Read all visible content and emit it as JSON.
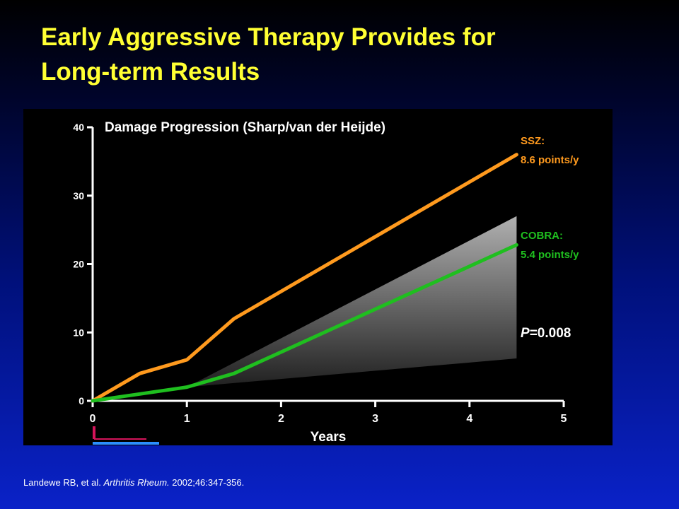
{
  "slide": {
    "title_line1": "Early Aggressive Therapy Provides for",
    "title_line2": "Long-term Results",
    "citation_authors": "Landewe RB, et al. ",
    "citation_journal": "Arthritis Rheum.",
    "citation_rest": " 2002;46:347-356."
  },
  "chart_data": {
    "type": "line",
    "title": "Damage Progression (Sharp/van der Heijde)",
    "xlabel": "Years",
    "ylabel": "",
    "xlim": [
      0,
      5
    ],
    "ylim": [
      0,
      40
    ],
    "x_ticks": [
      "0",
      "1",
      "2",
      "3",
      "4",
      "5"
    ],
    "y_ticks": [
      "0",
      "10",
      "20",
      "30",
      "40"
    ],
    "grid": false,
    "series": [
      {
        "name": "SSZ",
        "color": "#ff9a1e",
        "label_line1": "SSZ:",
        "label_line2": "8.6 points/y",
        "points": [
          [
            0,
            0
          ],
          [
            0.5,
            4
          ],
          [
            1,
            6
          ],
          [
            1.5,
            12
          ],
          [
            4.5,
            36
          ]
        ]
      },
      {
        "name": "COBRA",
        "color": "#1fbf1f",
        "label_line1": "COBRA:",
        "label_line2": "5.4 points/y",
        "points": [
          [
            0,
            0
          ],
          [
            0.5,
            1
          ],
          [
            1,
            2
          ],
          [
            1.5,
            4
          ],
          [
            4.5,
            22.8
          ]
        ]
      }
    ],
    "band": {
      "color_top": "#b0b0b0",
      "color_bottom": "#202020",
      "upper": [
        [
          1,
          2
        ],
        [
          4.5,
          27
        ]
      ],
      "lower": [
        [
          1,
          2
        ],
        [
          4.5,
          6.2
        ]
      ]
    },
    "annotation": {
      "italic_part": "P",
      "rest": "=0.008",
      "x": 4.55,
      "y": 10
    }
  }
}
